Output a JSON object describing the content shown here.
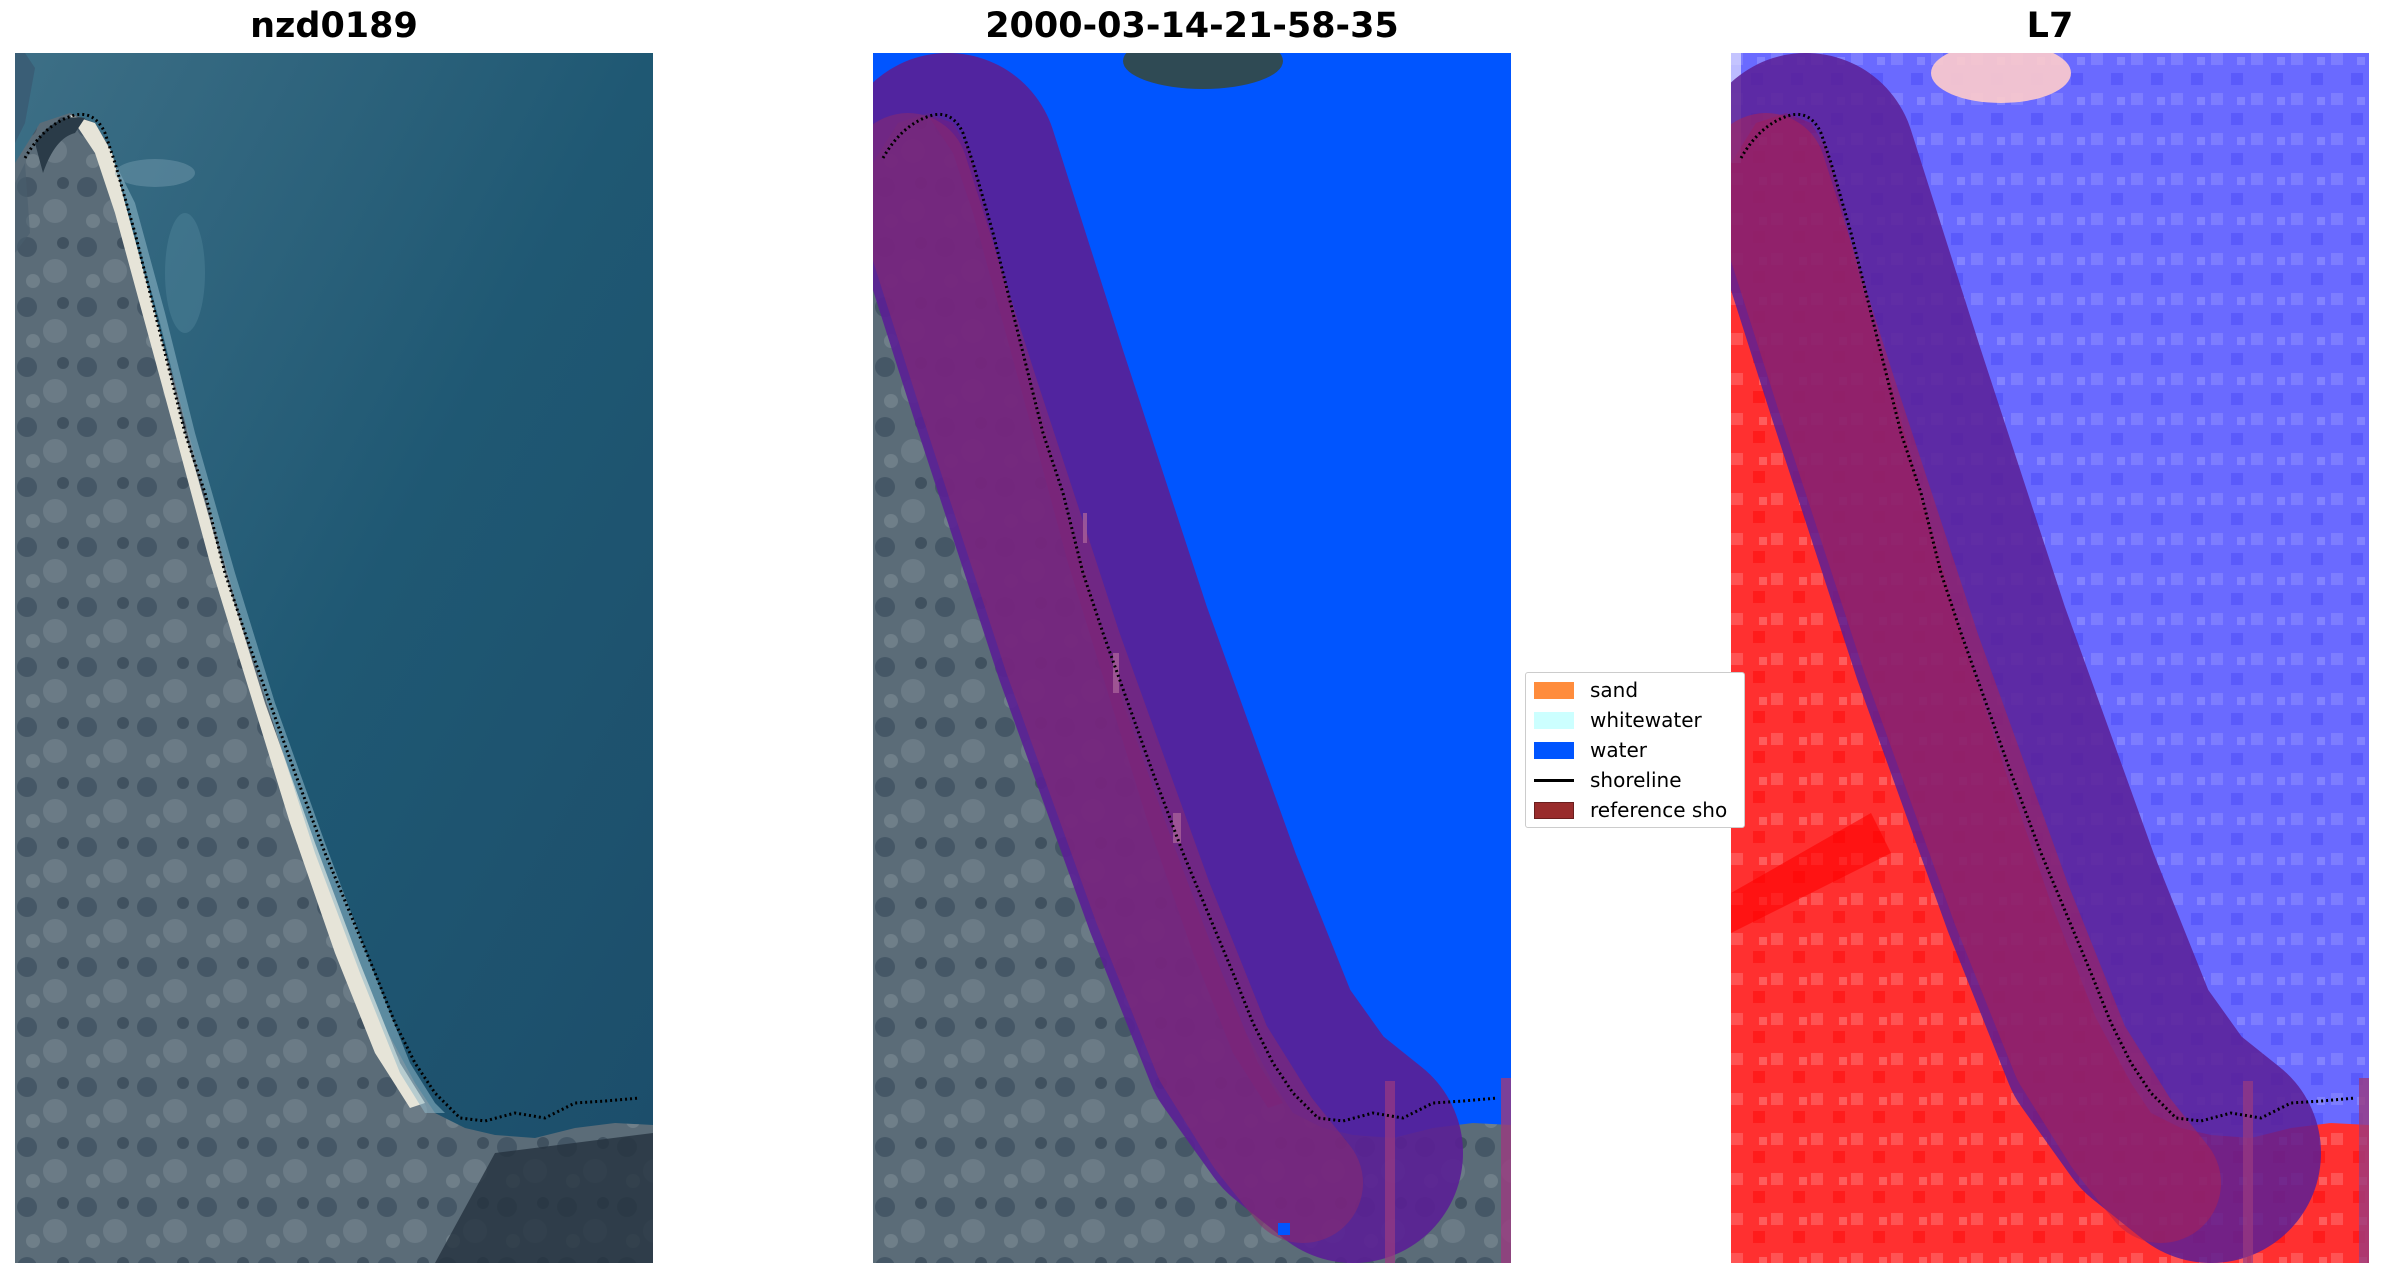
{
  "panels": [
    {
      "title": "nzd0189",
      "kind": "rgb"
    },
    {
      "title": "2000-03-14-21-58-35",
      "kind": "classified"
    },
    {
      "title": "L7",
      "kind": "index"
    }
  ],
  "legend": {
    "items": [
      {
        "label": "sand",
        "color": "#ff8c3c"
      },
      {
        "label": "whitewater",
        "color": "#ccffff"
      },
      {
        "label": "water",
        "color": "#0055ff"
      },
      {
        "label": "shoreline",
        "color": "#000000"
      },
      {
        "label": "reference sho",
        "color": "#992c2c"
      }
    ]
  },
  "colors": {
    "buffer": "#5a1f95",
    "sand_classified": "#c0303a",
    "index_land": "#ff2a2a",
    "index_water": "#6060ff"
  }
}
